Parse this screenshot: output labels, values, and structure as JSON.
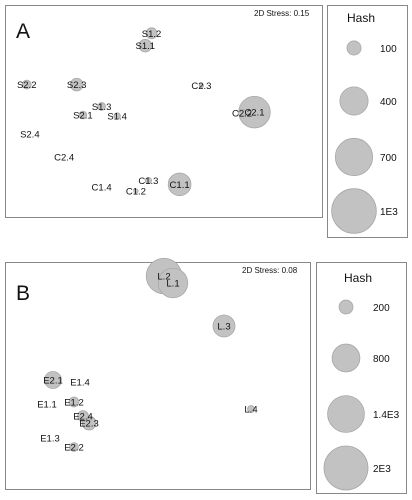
{
  "chart_data": [
    {
      "type": "scatter",
      "panel": "A",
      "stress_label": "2D Stress: 0.15",
      "legend": {
        "title": "Hash",
        "sizes": [
          100,
          400,
          700,
          1000
        ],
        "labels": [
          "100",
          "400",
          "700",
          "1E3"
        ]
      },
      "points": [
        {
          "label": "S1.2",
          "x": 0.46,
          "y": 0.86,
          "hash": 60
        },
        {
          "label": "S1.1",
          "x": 0.44,
          "y": 0.73,
          "hash": 80
        },
        {
          "label": "S2.2",
          "x": 0.06,
          "y": 0.32,
          "hash": 40
        },
        {
          "label": "S2.3",
          "x": 0.22,
          "y": 0.32,
          "hash": 80
        },
        {
          "label": "S1.3",
          "x": 0.3,
          "y": 0.09,
          "hash": 30
        },
        {
          "label": "S2.1",
          "x": 0.24,
          "y": 0.0,
          "hash": 30
        },
        {
          "label": "S1.4",
          "x": 0.35,
          "y": -0.01,
          "hash": 20
        },
        {
          "label": "S2.4",
          "x": 0.07,
          "y": -0.2,
          "hash": 0
        },
        {
          "label": "C2.3",
          "x": 0.62,
          "y": 0.31,
          "hash": 10
        },
        {
          "label": "C2.2",
          "x": 0.75,
          "y": 0.02,
          "hash": 30
        },
        {
          "label": "C2.1",
          "x": 0.79,
          "y": 0.03,
          "hash": 500
        },
        {
          "label": "C2.4",
          "x": 0.18,
          "y": -0.44,
          "hash": 0
        },
        {
          "label": "C1.3",
          "x": 0.45,
          "y": -0.69,
          "hash": 20
        },
        {
          "label": "C1.1",
          "x": 0.55,
          "y": -0.73,
          "hash": 260
        },
        {
          "label": "C1.4",
          "x": 0.3,
          "y": -0.76,
          "hash": 0
        },
        {
          "label": "C1.2",
          "x": 0.41,
          "y": -0.8,
          "hash": 10
        }
      ]
    },
    {
      "type": "scatter",
      "panel": "B",
      "stress_label": "2D Stress: 0.08",
      "legend": {
        "title": "Hash",
        "sizes": [
          200,
          800,
          1400,
          2000
        ],
        "labels": [
          "200",
          "800",
          "1.4E3",
          "2E3"
        ]
      },
      "points": [
        {
          "label": "L.2",
          "x": 0.52,
          "y": 0.92,
          "hash": 1300
        },
        {
          "label": "L.1",
          "x": 0.55,
          "y": 0.85,
          "hash": 900
        },
        {
          "label": "L.3",
          "x": 0.72,
          "y": 0.42,
          "hash": 500
        },
        {
          "label": "L.4",
          "x": 0.81,
          "y": -0.41,
          "hash": 50
        },
        {
          "label": "E2.1",
          "x": 0.15,
          "y": -0.12,
          "hash": 300
        },
        {
          "label": "E1.4",
          "x": 0.24,
          "y": -0.14,
          "hash": 0
        },
        {
          "label": "E1.1",
          "x": 0.13,
          "y": -0.36,
          "hash": 0
        },
        {
          "label": "E1.2",
          "x": 0.22,
          "y": -0.34,
          "hash": 100
        },
        {
          "label": "E2.4",
          "x": 0.25,
          "y": -0.48,
          "hash": 120
        },
        {
          "label": "E2.3",
          "x": 0.27,
          "y": -0.55,
          "hash": 200
        },
        {
          "label": "E1.3",
          "x": 0.14,
          "y": -0.7,
          "hash": 0
        },
        {
          "label": "E2.2",
          "x": 0.22,
          "y": -0.79,
          "hash": 80
        }
      ]
    }
  ]
}
